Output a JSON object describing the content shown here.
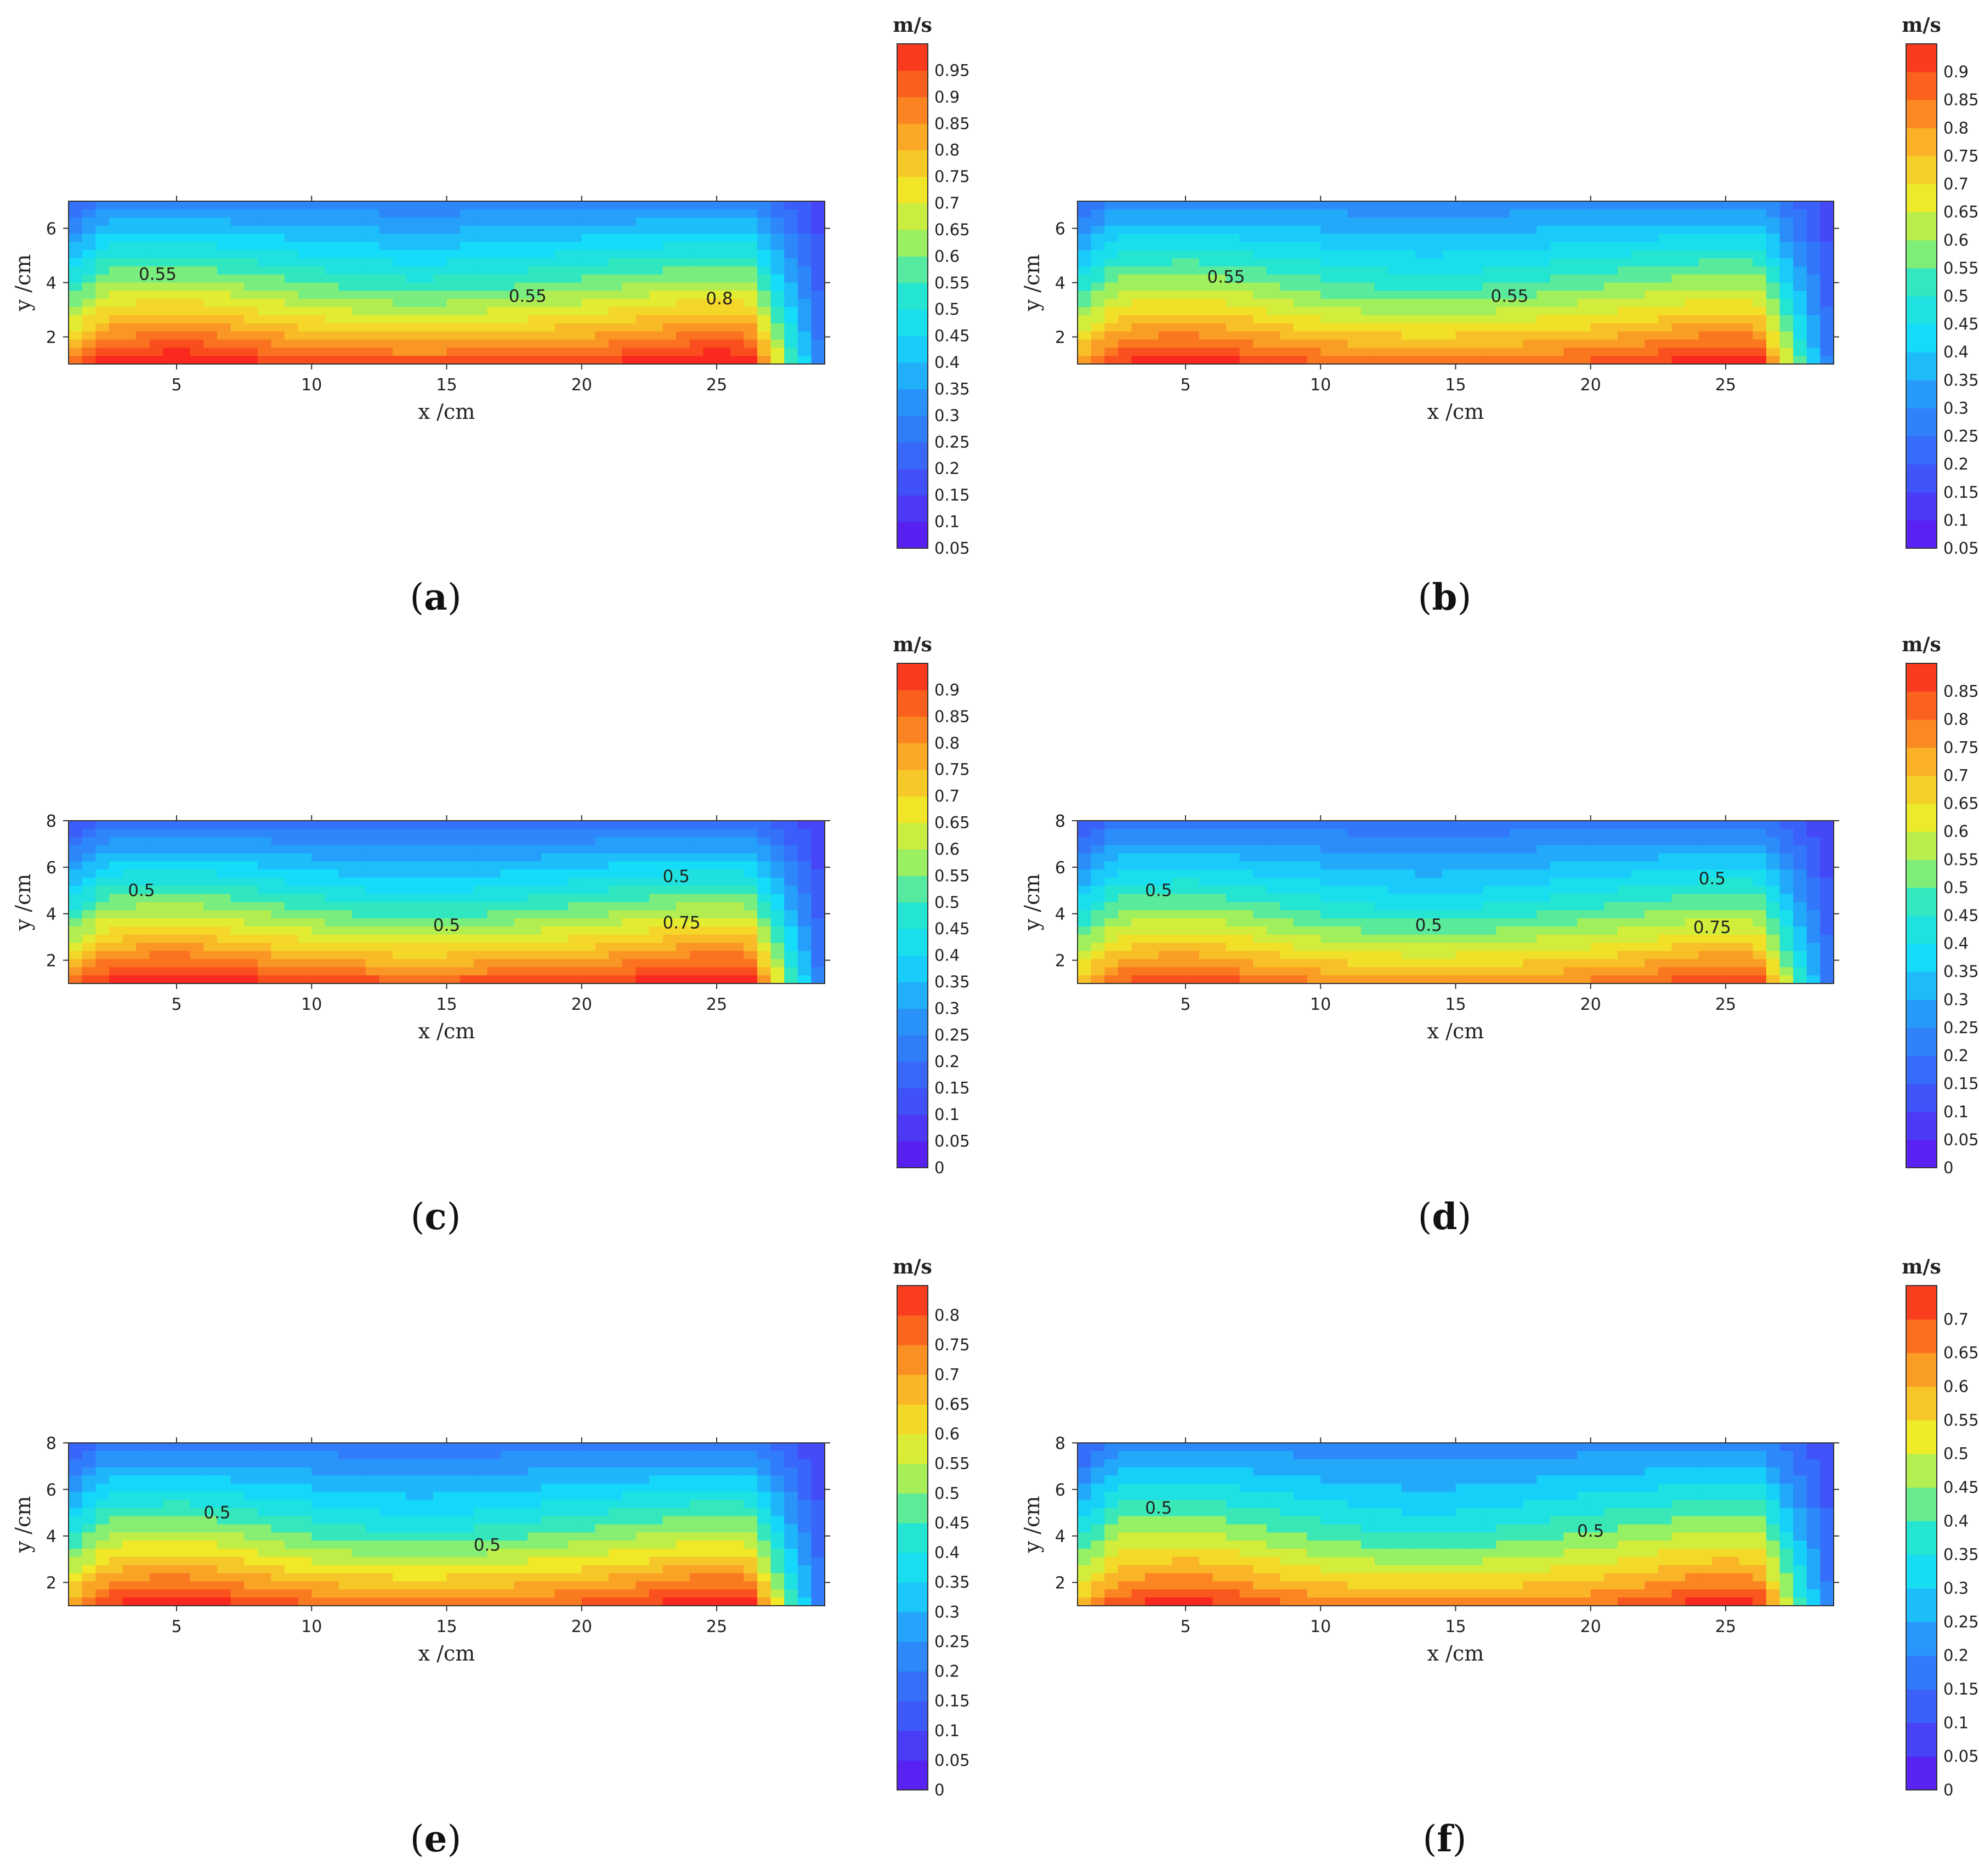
{
  "chart_data": [
    {
      "type": "contour",
      "letter": "a",
      "unit": "m/s",
      "xlabel": "x /cm",
      "ylabel": "y /cm",
      "xlim": [
        1,
        29
      ],
      "ylim": [
        1,
        7
      ],
      "x_ticks": [
        5,
        10,
        15,
        20,
        25
      ],
      "y_ticks": [
        2,
        4,
        6
      ],
      "colorbar_ticks": [
        "0.05",
        "0.1",
        "0.15",
        "0.2",
        "0.25",
        "0.3",
        "0.35",
        "0.4",
        "0.45",
        "0.5",
        "0.55",
        "0.6",
        "0.65",
        "0.7",
        "0.75",
        "0.8",
        "0.85",
        "0.9",
        "0.95"
      ],
      "colorbar_range": [
        0.05,
        1.0
      ],
      "labeled_contours": [
        {
          "value": "0.55",
          "x": 4.3,
          "y": 4.3
        },
        {
          "value": "0.55",
          "x": 18.0,
          "y": 3.5
        },
        {
          "value": "0.8",
          "x": 25.1,
          "y": 3.4
        }
      ],
      "field": {
        "top_min": 0.3,
        "mid": 0.55,
        "bottom_max": 0.98,
        "hot_spots_x": [
          5,
          25
        ],
        "cold_right_edge": 0.1
      }
    },
    {
      "type": "contour",
      "letter": "b",
      "unit": "m/s",
      "xlabel": "x /cm",
      "ylabel": "y /cm",
      "xlim": [
        1,
        29
      ],
      "ylim": [
        1,
        7
      ],
      "x_ticks": [
        5,
        10,
        15,
        20,
        25
      ],
      "y_ticks": [
        2,
        4,
        6
      ],
      "colorbar_ticks": [
        "0.05",
        "0.1",
        "0.15",
        "0.2",
        "0.25",
        "0.3",
        "0.35",
        "0.4",
        "0.45",
        "0.5",
        "0.55",
        "0.6",
        "0.65",
        "0.7",
        "0.75",
        "0.8",
        "0.85",
        "0.9"
      ],
      "colorbar_range": [
        0.05,
        0.95
      ],
      "labeled_contours": [
        {
          "value": "0.55",
          "x": 6.5,
          "y": 4.2
        },
        {
          "value": "0.55",
          "x": 17.0,
          "y": 3.5
        }
      ],
      "field": {
        "top_min": 0.3,
        "mid": 0.55,
        "bottom_max": 0.9,
        "hot_spots_x": [
          5,
          25
        ],
        "cold_right_edge": 0.1
      }
    },
    {
      "type": "contour",
      "letter": "c",
      "unit": "m/s",
      "xlabel": "x /cm",
      "ylabel": "y /cm",
      "xlim": [
        1,
        29
      ],
      "ylim": [
        1,
        8
      ],
      "x_ticks": [
        5,
        10,
        15,
        20,
        25
      ],
      "y_ticks": [
        2,
        4,
        6,
        8
      ],
      "colorbar_ticks": [
        "0",
        "0.05",
        "0.1",
        "0.15",
        "0.2",
        "0.25",
        "0.3",
        "0.35",
        "0.4",
        "0.45",
        "0.5",
        "0.55",
        "0.6",
        "0.65",
        "0.7",
        "0.75",
        "0.8",
        "0.85",
        "0.9"
      ],
      "colorbar_range": [
        0,
        0.95
      ],
      "labeled_contours": [
        {
          "value": "0.5",
          "x": 3.7,
          "y": 5.0
        },
        {
          "value": "0.5",
          "x": 15.0,
          "y": 3.5
        },
        {
          "value": "0.5",
          "x": 23.5,
          "y": 5.6
        },
        {
          "value": "0.75",
          "x": 23.7,
          "y": 3.6
        }
      ],
      "field": {
        "top_min": 0.2,
        "mid": 0.5,
        "bottom_max": 0.93,
        "hot_spots_x": [
          5,
          25
        ],
        "cold_right_edge": 0.05
      }
    },
    {
      "type": "contour",
      "letter": "d",
      "unit": "m/s",
      "xlabel": "x /cm",
      "ylabel": "y /cm",
      "xlim": [
        1,
        29
      ],
      "ylim": [
        1,
        8
      ],
      "x_ticks": [
        5,
        10,
        15,
        20,
        25
      ],
      "y_ticks": [
        2,
        4,
        6,
        8
      ],
      "colorbar_ticks": [
        "0",
        "0.05",
        "0.1",
        "0.15",
        "0.2",
        "0.25",
        "0.3",
        "0.35",
        "0.4",
        "0.45",
        "0.5",
        "0.55",
        "0.6",
        "0.65",
        "0.7",
        "0.75",
        "0.8",
        "0.85"
      ],
      "colorbar_range": [
        0,
        0.9
      ],
      "labeled_contours": [
        {
          "value": "0.5",
          "x": 4.0,
          "y": 5.0
        },
        {
          "value": "0.5",
          "x": 14.0,
          "y": 3.5
        },
        {
          "value": "0.5",
          "x": 24.5,
          "y": 5.5
        },
        {
          "value": "0.75",
          "x": 24.5,
          "y": 3.4
        }
      ],
      "field": {
        "top_min": 0.2,
        "mid": 0.5,
        "bottom_max": 0.8,
        "hot_spots_x": [
          5,
          25
        ],
        "cold_right_edge": 0.05
      }
    },
    {
      "type": "contour",
      "letter": "e",
      "unit": "m/s",
      "xlabel": "x /cm",
      "ylabel": "y /cm",
      "xlim": [
        1,
        29
      ],
      "ylim": [
        1,
        8
      ],
      "x_ticks": [
        5,
        10,
        15,
        20,
        25
      ],
      "y_ticks": [
        2,
        4,
        6,
        8
      ],
      "colorbar_ticks": [
        "0",
        "0.05",
        "0.1",
        "0.15",
        "0.2",
        "0.25",
        "0.3",
        "0.35",
        "0.4",
        "0.45",
        "0.5",
        "0.55",
        "0.6",
        "0.65",
        "0.7",
        "0.75",
        "0.8"
      ],
      "colorbar_range": [
        0,
        0.85
      ],
      "labeled_contours": [
        {
          "value": "0.5",
          "x": 6.5,
          "y": 5.0
        },
        {
          "value": "0.5",
          "x": 16.5,
          "y": 3.6
        }
      ],
      "field": {
        "top_min": 0.2,
        "mid": 0.5,
        "bottom_max": 0.8,
        "hot_spots_x": [
          5,
          25
        ],
        "cold_right_edge": 0.05
      }
    },
    {
      "type": "contour",
      "letter": "f",
      "unit": "m/s",
      "xlabel": "x /cm",
      "ylabel": "y /cm",
      "xlim": [
        1,
        29
      ],
      "ylim": [
        1,
        8
      ],
      "x_ticks": [
        5,
        10,
        15,
        20,
        25
      ],
      "y_ticks": [
        2,
        4,
        6,
        8
      ],
      "colorbar_ticks": [
        "0",
        "0.05",
        "0.1",
        "0.15",
        "0.2",
        "0.25",
        "0.3",
        "0.35",
        "0.4",
        "0.45",
        "0.5",
        "0.55",
        "0.6",
        "0.65",
        "0.7"
      ],
      "colorbar_range": [
        0,
        0.75
      ],
      "labeled_contours": [
        {
          "value": "0.5",
          "x": 4.0,
          "y": 5.2
        },
        {
          "value": "0.5",
          "x": 20.0,
          "y": 4.2
        }
      ],
      "field": {
        "top_min": 0.2,
        "mid": 0.5,
        "bottom_max": 0.68,
        "hot_spots_x": [
          5,
          25
        ],
        "cold_right_edge": 0.05
      }
    }
  ]
}
